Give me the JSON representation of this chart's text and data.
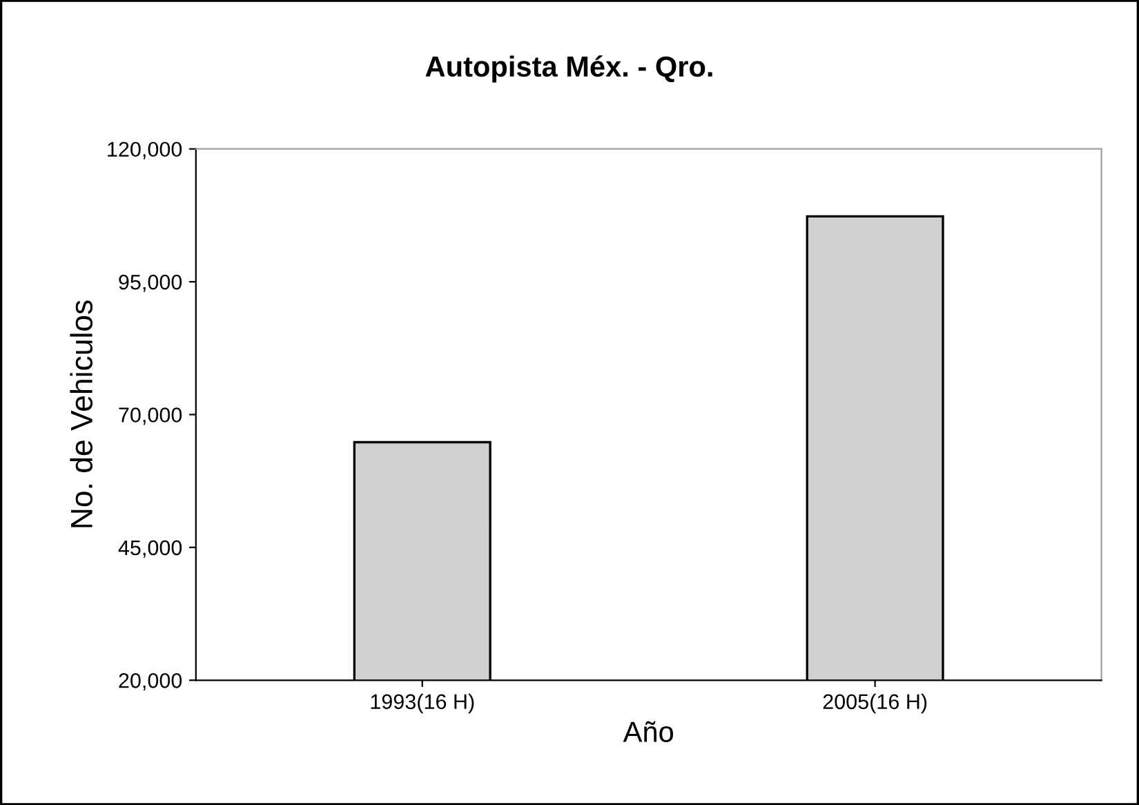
{
  "chart_data": {
    "type": "bar",
    "title": "Autopista Méx. - Qro.",
    "xlabel": "Año",
    "ylabel": "No. de Vehiculos",
    "categories": [
      "1993(16 H)",
      "2005(16 H)"
    ],
    "values": [
      64800,
      107300
    ],
    "color": "#d0d0d0",
    "ylim": [
      20000,
      120000
    ],
    "yticks": [
      {
        "value": 20000,
        "label": "20,000"
      },
      {
        "value": 45000,
        "label": "45,000"
      },
      {
        "value": 70000,
        "label": "70,000"
      },
      {
        "value": 95000,
        "label": "95,000"
      },
      {
        "value": 120000,
        "label": "120,000"
      }
    ],
    "grid": false,
    "legend": false
  }
}
